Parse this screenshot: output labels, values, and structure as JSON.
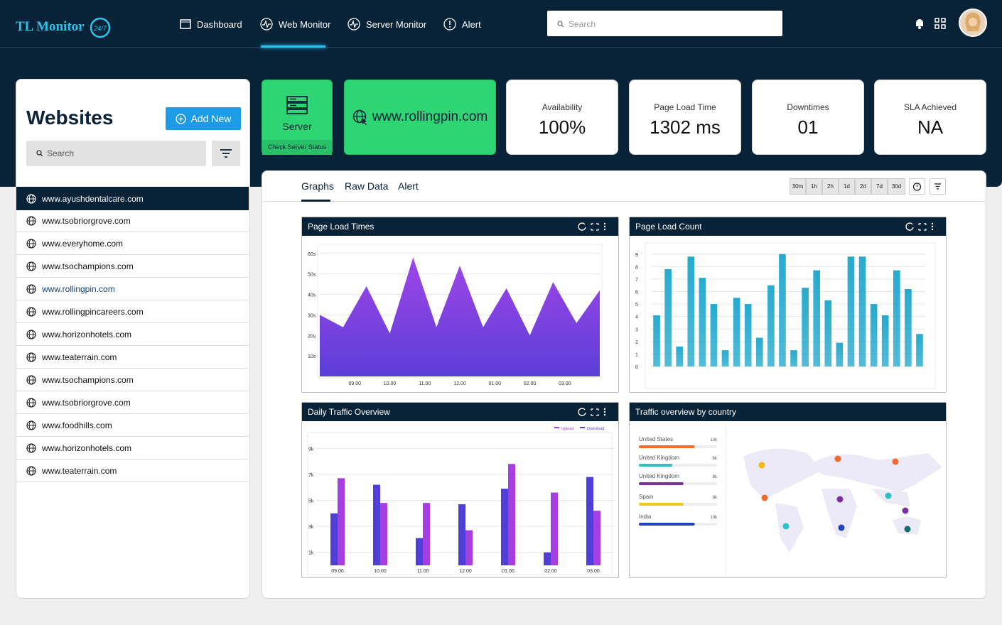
{
  "header": {
    "logo": "TL Monitor",
    "logo_badge": "24/7",
    "nav": [
      "Dashboard",
      "Web Monitor",
      "Server Monitor",
      "Alert"
    ],
    "search_placeholder": "Search"
  },
  "sidebar": {
    "title": "Websites",
    "add_button": "Add New",
    "search_placeholder": "Search",
    "sites": [
      "www.ayushdentalcare.com",
      "www.tsobriorgrove.com",
      "www.everyhome.com",
      "www.tsochampions.com",
      "www.rollingpin.com",
      "www.rollingpincareers.com",
      "www.horizonhotels.com",
      "www.teaterrain.com",
      "www.tsochampions.com",
      "www.tsobriorgrove.com",
      "www.foodhills.com",
      "www.horizonhotels.com",
      "www.teaterrain.com"
    ]
  },
  "server_card": {
    "label": "Server",
    "action": "Check Server Status"
  },
  "site_card": {
    "url": "www.rollingpin.com"
  },
  "stats": [
    {
      "label": "Availability",
      "value": "100%"
    },
    {
      "label": "Page Load Time",
      "value": "1302 ms"
    },
    {
      "label": "Downtimes",
      "value": "01"
    },
    {
      "label": "SLA Achieved",
      "value": "NA"
    }
  ],
  "tabs": [
    "Graphs",
    "Raw Data",
    "Alert"
  ],
  "ranges": [
    "30m",
    "1h",
    "2h",
    "1d",
    "2d",
    "7d",
    "30d"
  ],
  "charts": [
    {
      "type": "area",
      "title": "Page Load Times",
      "x_labels": [
        "09.00",
        "10.00",
        "11.00",
        "12.00",
        "01.00",
        "02.00",
        "03.00"
      ],
      "values": [
        30,
        24,
        44,
        21,
        58,
        24,
        54,
        24,
        43,
        20,
        46,
        26,
        42
      ],
      "colors": [
        "#a046e6",
        "#5b3ed8"
      ],
      "ylim": [
        0,
        62
      ],
      "yticks": [
        {
          "value": 10,
          "label": "10s"
        },
        {
          "value": 20,
          "label": "20s"
        },
        {
          "value": 30,
          "label": "30s"
        },
        {
          "value": 40,
          "label": "40s"
        },
        {
          "value": 50,
          "label": "50s"
        },
        {
          "value": 60,
          "label": "60s"
        }
      ]
    },
    {
      "type": "bar",
      "title": "Page Load Count",
      "values": [
        4.1,
        7.8,
        1.6,
        8.8,
        7.1,
        5,
        1.3,
        5.5,
        5,
        2.3,
        6.5,
        9,
        1.3,
        6.3,
        7.7,
        5.3,
        1.9,
        8.8,
        8.8,
        5,
        4.1,
        7.7,
        6.2,
        2.6
      ],
      "color": "#27aacf",
      "ylim": [
        0,
        9.5
      ],
      "yticks": [
        0,
        1,
        2,
        3,
        4,
        5,
        6,
        7,
        8,
        9
      ]
    },
    {
      "type": "grouped_bar",
      "title": "Daily Traffic Overview",
      "categories": [
        "09.00",
        "10.00",
        "11.00",
        "12.00",
        "01.00",
        "02.00",
        "03.00"
      ],
      "series": [
        {
          "name": "Download",
          "color": "#4f3fd8",
          "values": [
            4000,
            6200,
            2100,
            4700,
            5900,
            1000,
            6800
          ]
        },
        {
          "name": "Upload",
          "color": "#a83ee2",
          "values": [
            6700,
            4800,
            4800,
            2700,
            7800,
            5600,
            4200
          ]
        }
      ],
      "ylim": [
        0,
        10000
      ],
      "yticks": [
        {
          "value": 1000,
          "label": "1k"
        },
        {
          "value": 3000,
          "label": "3k"
        },
        {
          "value": 5000,
          "label": "5k"
        },
        {
          "value": 7000,
          "label": "7k"
        },
        {
          "value": 9000,
          "label": "9k"
        }
      ]
    },
    {
      "type": "hbar_list",
      "title": "Traffic overview by country",
      "categories": [
        "United States",
        "United Kingdom",
        "United Kingdom",
        "Spain",
        "India"
      ],
      "values": [
        10000,
        6000,
        8000,
        8000,
        10000
      ],
      "value_labels": [
        "10k",
        "6k",
        "8k",
        "8k",
        "10k"
      ],
      "colors": [
        "#f26a2e",
        "#2fc1c4",
        "#7b2fa0",
        "#f5c518",
        "#2143b8"
      ],
      "xlim": [
        0,
        14000
      ]
    }
  ]
}
